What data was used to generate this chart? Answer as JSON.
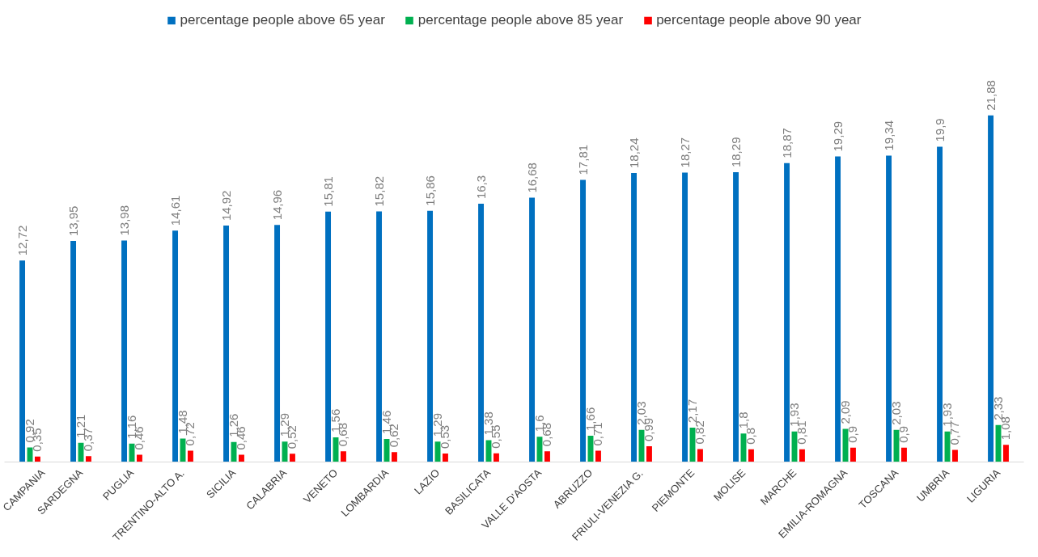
{
  "chart_data": {
    "type": "bar",
    "categories": [
      "CAMPANIA",
      "SARDEGNA",
      "PUGLIA",
      "TRENTINO-ALTO A.",
      "SICILIA",
      "CALABRIA",
      "VENETO",
      "LOMBARDIA",
      "LAZIO",
      "BASILICATA",
      "VALLE D'AOSTA",
      "ABRUZZO",
      "FRIULI-VENEZIA G.",
      "PIEMONTE",
      "MOLISE",
      "MARCHE",
      "EMILIA-ROMAGNA",
      "TOSCANA",
      "UMBRIA",
      "LIGURIA"
    ],
    "series": [
      {
        "name": "percentage people above 65 year",
        "color": "#0070c0",
        "values": [
          12.72,
          13.95,
          13.98,
          14.61,
          14.92,
          14.96,
          15.81,
          15.82,
          15.86,
          16.3,
          16.68,
          17.81,
          18.24,
          18.27,
          18.29,
          18.87,
          19.29,
          19.34,
          19.9,
          21.88
        ],
        "value_labels": [
          "12,72",
          "13,95",
          "13,98",
          "14,61",
          "14,92",
          "14,96",
          "15,81",
          "15,82",
          "15,86",
          "16,3",
          "16,68",
          "17,81",
          "18,24",
          "18,27",
          "18,29",
          "18,87",
          "19,29",
          "19,34",
          "19,9",
          "21,88"
        ]
      },
      {
        "name": "percentage people above 85 year",
        "color": "#00b050",
        "values": [
          0.92,
          1.21,
          1.16,
          1.48,
          1.26,
          1.29,
          1.56,
          1.46,
          1.29,
          1.38,
          1.6,
          1.66,
          2.03,
          2.17,
          1.8,
          1.93,
          2.09,
          2.03,
          1.93,
          2.33
        ],
        "value_labels": [
          "0,92",
          "1,21",
          "1,16",
          "1,48",
          "1,26",
          "1,29",
          "1,56",
          "1,46",
          "1,29",
          "1,38",
          "1,6",
          "1,66",
          "2,03",
          "2,17",
          "1,8",
          "1,93",
          "2,09",
          "2,03",
          "1,93",
          "2,33"
        ]
      },
      {
        "name": "percentage people above 90 year",
        "color": "#ff0000",
        "values": [
          0.35,
          0.37,
          0.46,
          0.72,
          0.46,
          0.52,
          0.68,
          0.62,
          0.53,
          0.55,
          0.68,
          0.71,
          0.99,
          0.82,
          0.8,
          0.81,
          0.9,
          0.9,
          0.77,
          1.08
        ],
        "value_labels": [
          "0,35",
          "0,37",
          "0,46",
          "0,72",
          "0,46",
          "0,52",
          "0,68",
          "0,62",
          "0,53",
          "0,55",
          "0,68",
          "0,71",
          "0,99",
          "0,82",
          "0,8",
          "0,81",
          "0,9",
          "0,9",
          "0,77",
          "1,08"
        ]
      }
    ],
    "legend": "top"
  }
}
